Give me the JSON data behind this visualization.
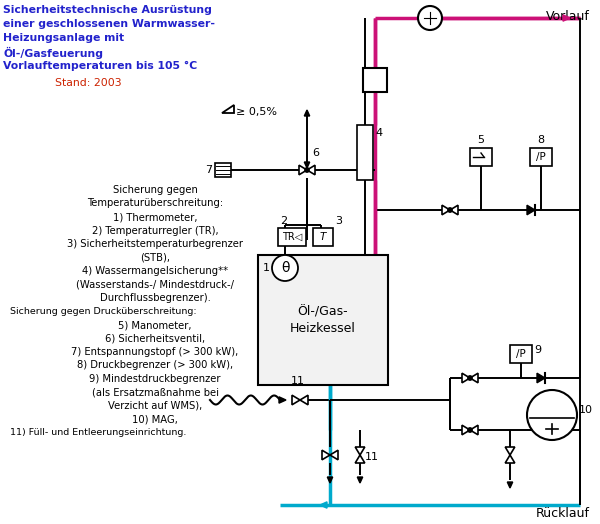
{
  "bg_color": "#ffffff",
  "text_color_blue": "#2222cc",
  "text_color_red": "#cc2200",
  "text_color_black": "#000000",
  "vorlauf_color": "#cc1177",
  "ruecklauf_color": "#00aacc",
  "title_lines": [
    "Sicherheitstechnische Ausrüstung",
    "einer geschlossenen Warmwasser-",
    "Heizungsanlage mit",
    "Öl-/Gasfeuerung",
    "Vorlauftemperaturen bis 105 °C"
  ],
  "subtitle": "Stand: 2003",
  "legend_lines": [
    [
      "Sicherung gegen",
      "center"
    ],
    [
      "Temperaturüberschreitung:",
      "center"
    ],
    [
      "1) Thermometer,",
      "center"
    ],
    [
      "2) Temperaturregler (TR),",
      "center"
    ],
    [
      "3) Sicherheitstemperaturbegrenzer",
      "center"
    ],
    [
      "(STB),",
      "center"
    ],
    [
      "4) Wassermangelsicherung**",
      "center"
    ],
    [
      "(Wasserstands-/ Mindestdruck-/",
      "center"
    ],
    [
      "Durchflussbegrenzer).",
      "center"
    ],
    [
      "Sicherung gegen Drucküberschreitung:",
      "left"
    ],
    [
      "5) Manometer,",
      "center"
    ],
    [
      "6) Sicherheitsventil,",
      "center"
    ],
    [
      "7) Entspannungstopf (> 300 kW),",
      "center"
    ],
    [
      "8) Druckbegrenzer (> 300 kW),",
      "center"
    ],
    [
      "9) Mindestdruckbegrenzer",
      "center"
    ],
    [
      "(als Ersatzmaßnahme bei",
      "center"
    ],
    [
      "Verzicht auf WMS),",
      "center"
    ],
    [
      "10) MAG,",
      "center"
    ],
    [
      "11) Füll- und Entleerungseinrichtung.",
      "left"
    ]
  ]
}
